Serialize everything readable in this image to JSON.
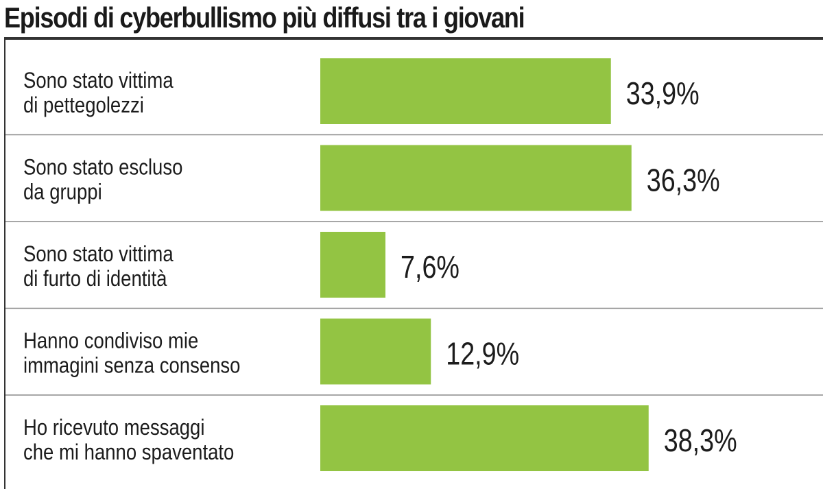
{
  "chart_data": {
    "type": "bar",
    "orientation": "horizontal",
    "title": "Episodi di cyberbullismo più diffusi tra i giovani",
    "categories": [
      [
        "Sono stato vittima",
        "di pettegolezzi"
      ],
      [
        "Sono stato escluso",
        "da gruppi"
      ],
      [
        "Sono stato vittima",
        "di furto di identità"
      ],
      [
        "Hanno condiviso mie",
        "immagini senza consenso"
      ],
      [
        "Ho ricevuto messaggi",
        "che mi hanno spaventato"
      ]
    ],
    "values": [
      33.9,
      36.3,
      7.6,
      12.9,
      38.3
    ],
    "value_labels": [
      "33,9%",
      "36,3%",
      "7,6%",
      "12,9%",
      "38,3%"
    ],
    "unit": "%",
    "bar_color": "#93c443",
    "grid": false,
    "legend": "none"
  }
}
